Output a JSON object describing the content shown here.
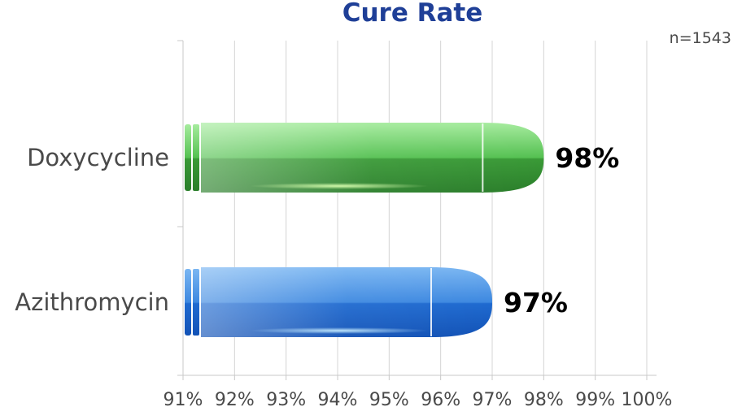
{
  "chart_data": {
    "type": "bar",
    "orientation": "horizontal",
    "title": "Cure Rate",
    "annotation": "n=1543",
    "categories": [
      "Doxycycline",
      "Azithromycin"
    ],
    "values": [
      98,
      97
    ],
    "value_labels": [
      "98%",
      "97%"
    ],
    "xlim": [
      91,
      100
    ],
    "xticks": [
      91,
      92,
      93,
      94,
      95,
      96,
      97,
      98,
      99,
      100
    ],
    "xtick_labels": [
      "91%",
      "92%",
      "93%",
      "94%",
      "95%",
      "96%",
      "97%",
      "98%",
      "99%",
      "100%"
    ],
    "xlabel": "",
    "ylabel": "",
    "grid": "vertical",
    "legend": "none"
  },
  "colors": {
    "title": "#1f3f97",
    "text": "#4a4a4a",
    "grid": "#d4d4d4",
    "green_light": "#8fe08a",
    "green_dark": "#2f8a2f",
    "green_glow": "#b8ff9a",
    "blue_light": "#6aaaf0",
    "blue_dark": "#1258c0",
    "blue_glow": "#9fd6ff"
  }
}
